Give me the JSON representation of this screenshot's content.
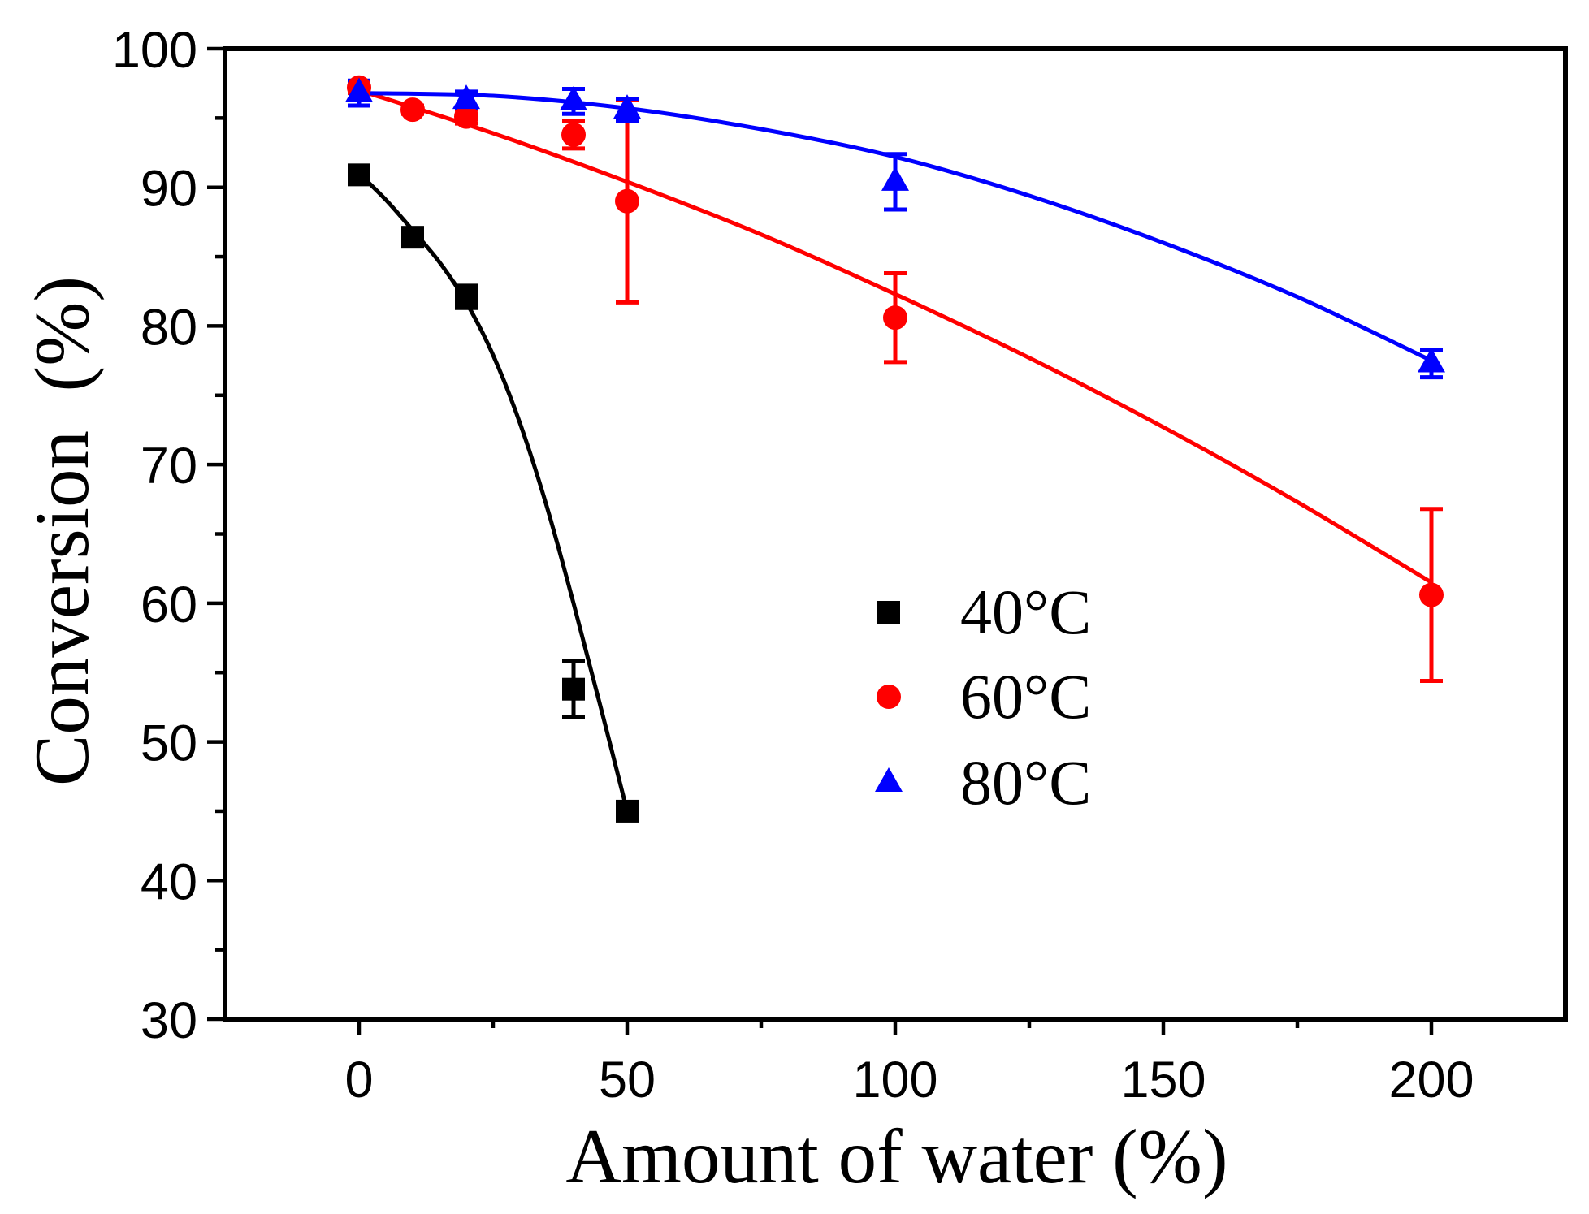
{
  "chart_data": {
    "type": "scatter",
    "xlabel": "Amount of water (%)",
    "ylabel": "Conversion  (%)",
    "xlim": [
      -25,
      225
    ],
    "ylim": [
      30,
      100
    ],
    "x_ticks": [
      0,
      50,
      100,
      150,
      200
    ],
    "x_minor_ticks": [
      25,
      75,
      125,
      175
    ],
    "y_ticks": [
      30,
      40,
      50,
      60,
      70,
      80,
      90,
      100
    ],
    "y_minor_ticks": [
      35,
      45,
      55,
      65,
      75,
      85,
      95
    ],
    "grid": false,
    "legend": {
      "position": "center"
    },
    "series": [
      {
        "name": "40°C",
        "color": "#000000",
        "marker": "square",
        "x": [
          0,
          10,
          20,
          40,
          50
        ],
        "y": [
          90.9,
          86.4,
          82.1,
          53.8,
          45.0
        ],
        "error": [
          0.5,
          0.4,
          0.8,
          2.0,
          0.4
        ],
        "fit": {
          "x": [
            0,
            5,
            10,
            15,
            20,
            25,
            30,
            35,
            40,
            45,
            50
          ],
          "y": [
            91.0,
            89.1,
            86.9,
            84.6,
            81.7,
            77.9,
            73.0,
            67.0,
            60.0,
            52.6,
            45.0
          ]
        }
      },
      {
        "name": "60°C",
        "color": "#ff0000",
        "marker": "circle",
        "x": [
          0,
          10,
          20,
          40,
          50,
          100,
          200
        ],
        "y": [
          97.2,
          95.6,
          95.1,
          93.8,
          89.0,
          80.6,
          60.6
        ],
        "error": [
          0.4,
          0.3,
          0.5,
          1.0,
          7.3,
          3.2,
          6.2
        ],
        "fit": {
          "x": [
            0,
            25,
            50,
            75,
            100,
            125,
            150,
            175,
            200
          ],
          "y": [
            97.0,
            93.9,
            90.4,
            86.6,
            82.3,
            77.7,
            72.7,
            67.3,
            61.5
          ]
        }
      },
      {
        "name": "80°C",
        "color": "#0000ff",
        "marker": "triangle",
        "x": [
          0,
          20,
          40,
          50,
          100,
          200
        ],
        "y": [
          96.8,
          96.3,
          96.2,
          95.6,
          90.4,
          77.3
        ],
        "error": [
          0.9,
          0.6,
          0.9,
          0.8,
          2.0,
          1.0
        ],
        "fit": {
          "x": [
            0,
            25,
            50,
            75,
            100,
            125,
            150,
            175,
            200
          ],
          "y": [
            96.8,
            96.6,
            95.7,
            94.2,
            92.2,
            89.4,
            86.0,
            82.1,
            77.5
          ]
        }
      }
    ]
  }
}
